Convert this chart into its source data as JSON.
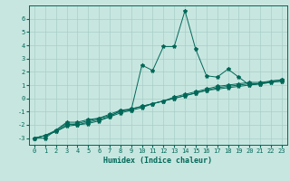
{
  "xlabel": "Humidex (Indice chaleur)",
  "ylabel": "",
  "background_color": "#c8e6e0",
  "grid_color": "#a8cec8",
  "line_color": "#006858",
  "xlim": [
    -0.5,
    23.5
  ],
  "ylim": [
    -3.5,
    7.0
  ],
  "xticks": [
    0,
    1,
    2,
    3,
    4,
    5,
    6,
    7,
    8,
    9,
    10,
    11,
    12,
    13,
    14,
    15,
    16,
    17,
    18,
    19,
    20,
    21,
    22,
    23
  ],
  "yticks": [
    -3,
    -2,
    -1,
    0,
    1,
    2,
    3,
    4,
    5,
    6
  ],
  "series": [
    [
      0,
      1,
      2,
      3,
      4,
      5,
      6,
      7,
      8,
      9,
      10,
      11,
      12,
      13,
      14,
      15,
      16,
      17,
      18,
      19,
      20,
      21,
      22,
      23
    ],
    [
      -3.0,
      -3.0,
      -2.4,
      -1.9,
      -2.0,
      -1.9,
      -1.7,
      -1.4,
      -0.9,
      -0.9,
      2.5,
      2.1,
      3.9,
      3.9,
      6.6,
      3.7,
      1.7,
      1.6,
      2.2,
      1.6,
      1.0,
      1.1,
      1.3,
      1.4
    ],
    [
      -3.0,
      -2.8,
      -2.4,
      -1.8,
      -1.8,
      -1.6,
      -1.5,
      -1.2,
      -0.9,
      -0.8,
      -0.6,
      -0.4,
      -0.2,
      0.0,
      0.2,
      0.4,
      0.6,
      0.7,
      0.8,
      0.9,
      1.0,
      1.1,
      1.2,
      1.3
    ],
    [
      -3.0,
      -2.8,
      -2.5,
      -2.0,
      -1.9,
      -1.7,
      -1.5,
      -1.3,
      -1.0,
      -0.8,
      -0.6,
      -0.4,
      -0.2,
      0.0,
      0.2,
      0.4,
      0.6,
      0.8,
      0.9,
      1.0,
      1.1,
      1.1,
      1.2,
      1.3
    ],
    [
      -3.0,
      -2.8,
      -2.5,
      -2.1,
      -2.0,
      -1.8,
      -1.6,
      -1.4,
      -1.1,
      -0.9,
      -0.7,
      -0.4,
      -0.2,
      0.1,
      0.3,
      0.5,
      0.7,
      0.9,
      1.0,
      1.1,
      1.2,
      1.2,
      1.3,
      1.4
    ]
  ],
  "marker": "*",
  "markersize": 3,
  "linewidth": 0.7,
  "tick_fontsize": 5,
  "label_fontsize": 6,
  "label_fontweight": "bold"
}
